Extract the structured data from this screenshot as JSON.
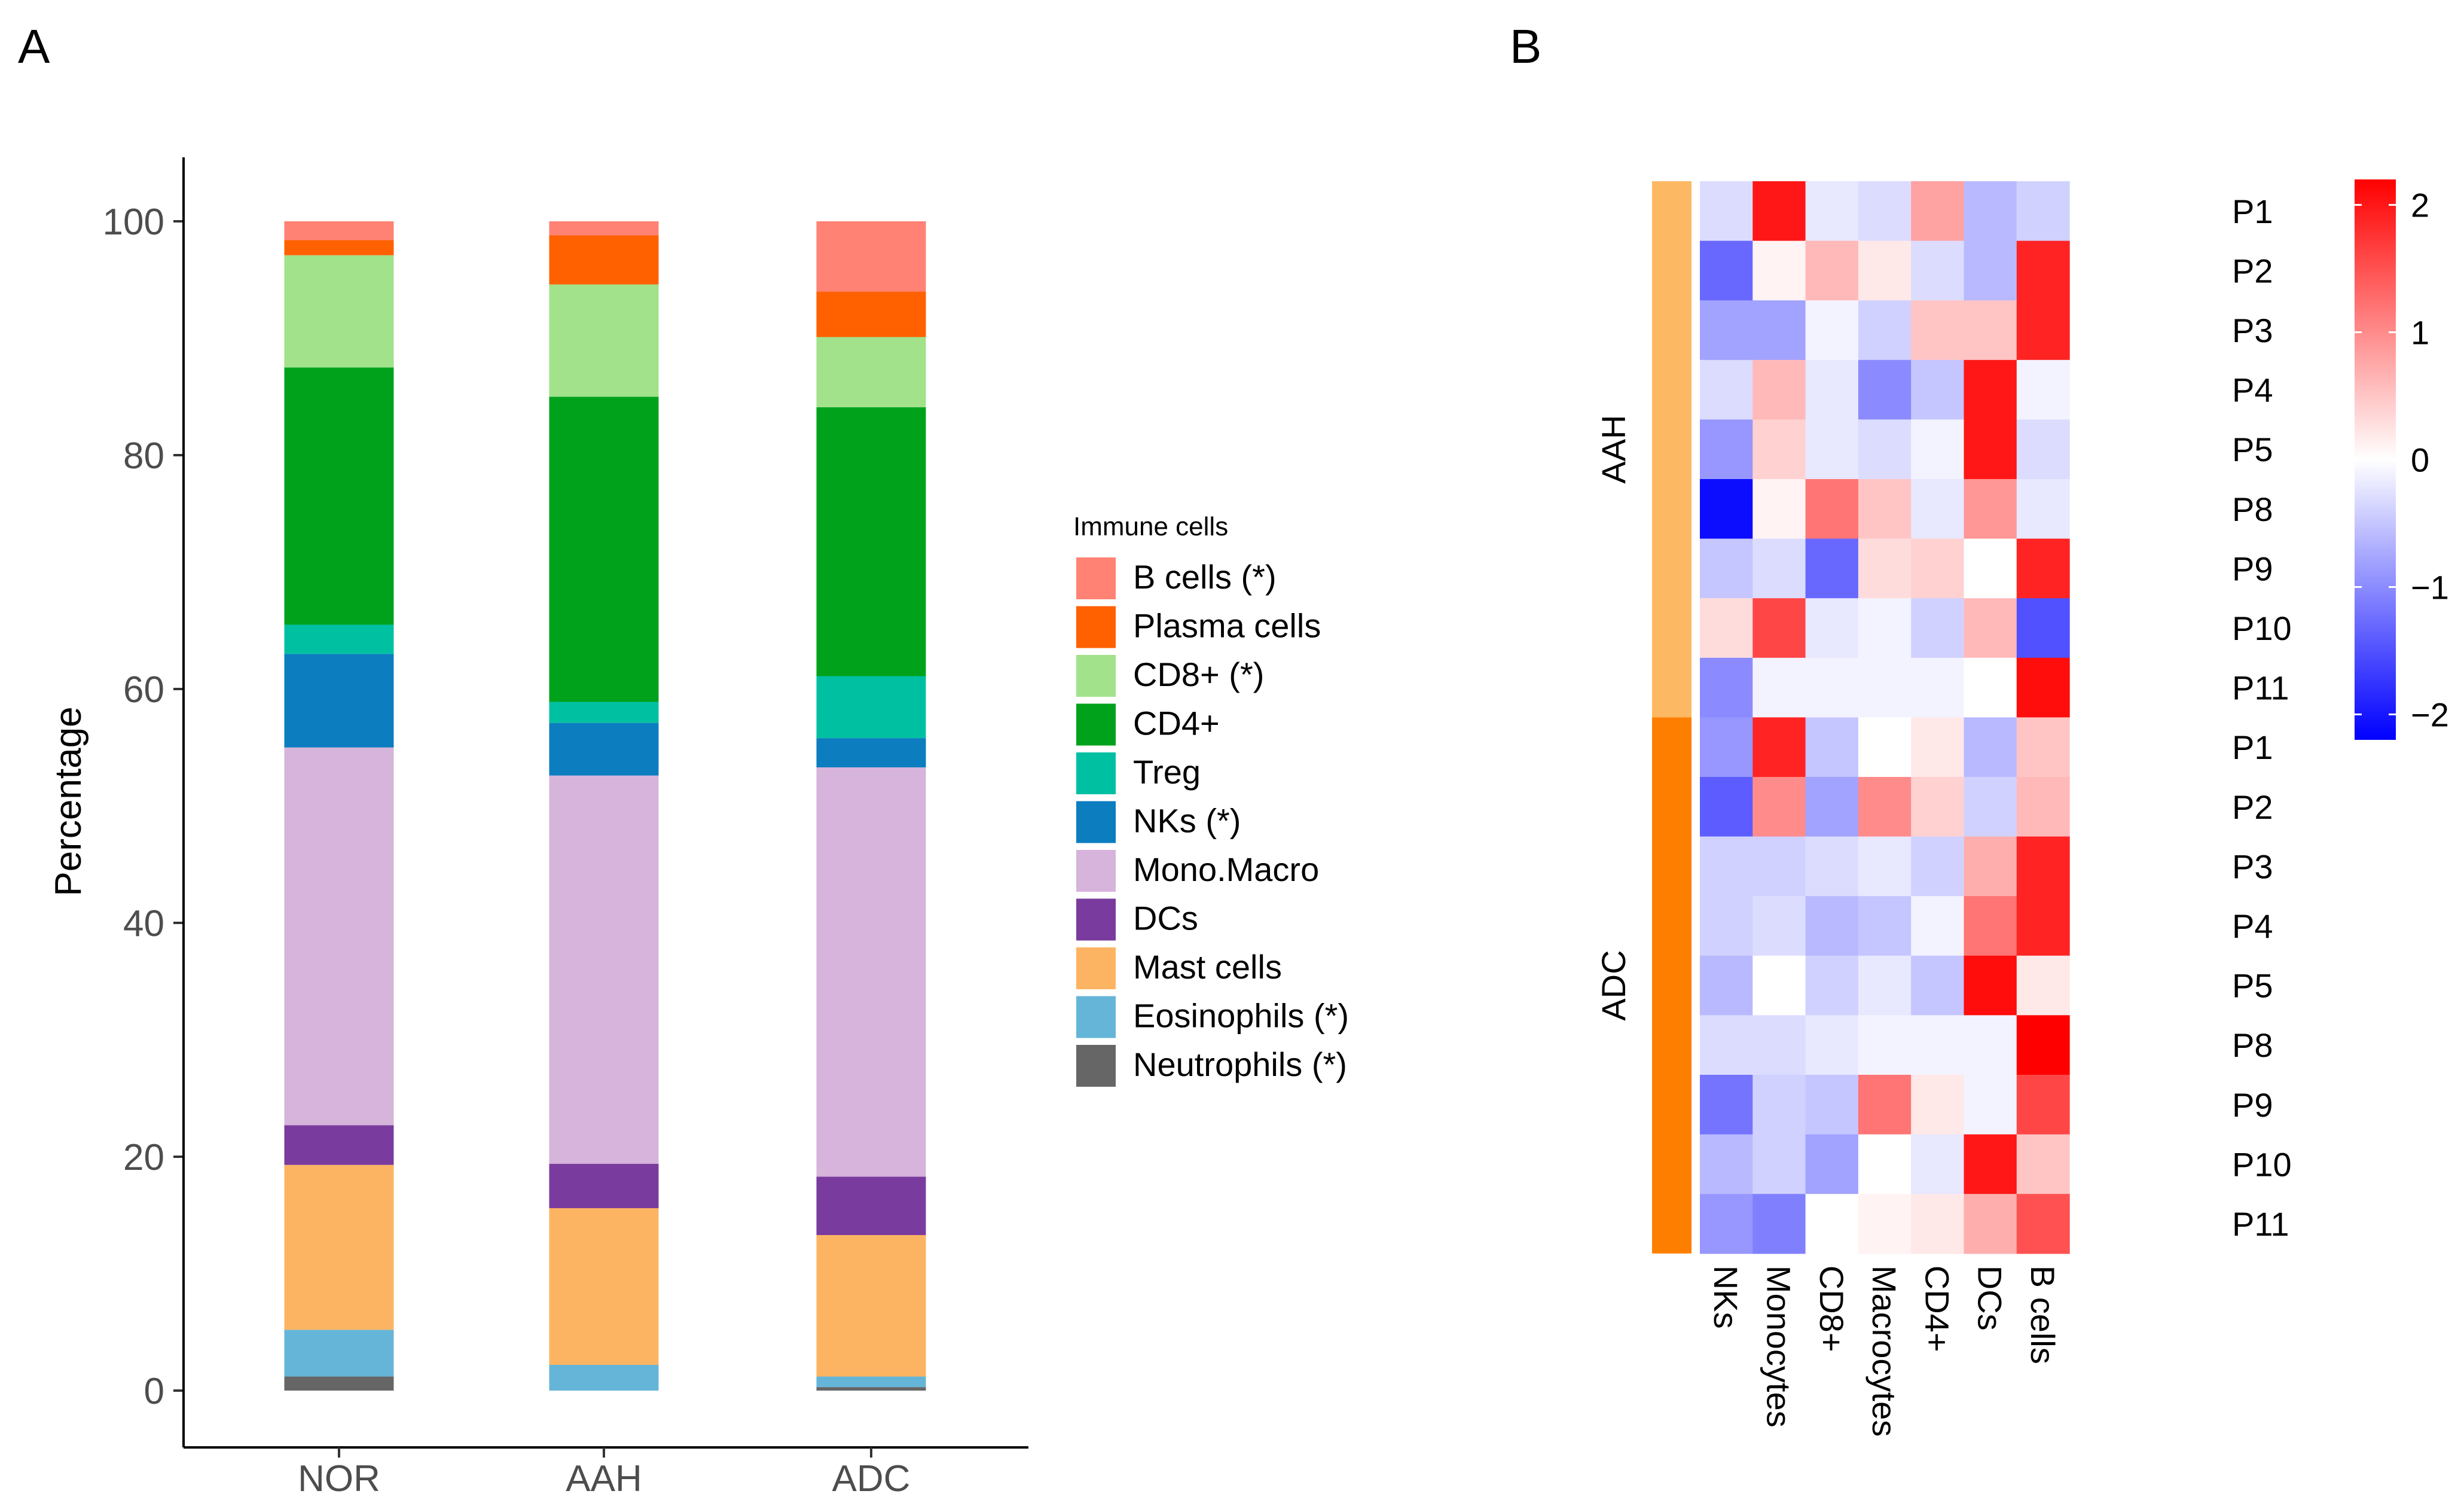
{
  "chart_data": [
    {
      "panel_label": "A",
      "type": "bar",
      "stacked": true,
      "ylabel": "Percentage",
      "ylim": [
        -4,
        105
      ],
      "yticks": [
        "0",
        "20",
        "40",
        "60",
        "80",
        "100"
      ],
      "categories": [
        "NOR",
        "AAH",
        "ADC"
      ],
      "legend_title": "Immune cells",
      "series": [
        {
          "name": "Neutrophils (*)",
          "color": "#666666",
          "values": [
            1.2,
            0.0,
            0.3
          ]
        },
        {
          "name": "Eosinophils (*)",
          "color": "#65b5d8",
          "values": [
            4.0,
            2.2,
            0.9
          ]
        },
        {
          "name": "Mast cells",
          "color": "#fdb462",
          "values": [
            14.1,
            13.4,
            12.1
          ]
        },
        {
          "name": "DCs",
          "color": "#7a3b9e",
          "values": [
            3.4,
            3.8,
            5.0
          ]
        },
        {
          "name": "Mono.Macro",
          "color": "#d6b4db",
          "values": [
            32.3,
            33.2,
            35.0
          ]
        },
        {
          "name": "NKs (*)",
          "color": "#0c7dbf",
          "values": [
            8.0,
            4.5,
            2.5
          ]
        },
        {
          "name": "Treg",
          "color": "#00c0a2",
          "values": [
            2.5,
            1.8,
            5.3
          ]
        },
        {
          "name": "CD4+",
          "color": "#00a21c",
          "values": [
            22.0,
            26.1,
            23.0
          ]
        },
        {
          "name": "CD8+ (*)",
          "color": "#a1e28a",
          "values": [
            9.6,
            9.6,
            6.0
          ]
        },
        {
          "name": "Plasma cells",
          "color": "#ff6000",
          "values": [
            1.3,
            4.2,
            3.9
          ]
        },
        {
          "name": "B cells (*)",
          "color": "#ff8275",
          "values": [
            1.6,
            1.2,
            6.0
          ]
        }
      ]
    },
    {
      "panel_label": "B",
      "type": "heatmap",
      "columns": [
        "NKs",
        "Monocytes",
        "CD8+",
        "Macrocytes",
        "CD4+",
        "DCs",
        "B cells"
      ],
      "groups": [
        {
          "name": "AAH",
          "color": "#fdb863",
          "rows": [
            "P1",
            "P2",
            "P3",
            "P4",
            "P5",
            "P8",
            "P9",
            "P10",
            "P11"
          ]
        },
        {
          "name": "ADC",
          "color": "#fe7f00",
          "rows": [
            "P1",
            "P2",
            "P3",
            "P4",
            "P5",
            "P8",
            "P9",
            "P10",
            "P11"
          ]
        }
      ],
      "values": [
        [
          -0.3,
          2.0,
          -0.2,
          -0.3,
          0.8,
          -0.6,
          -0.4
        ],
        [
          -1.3,
          0.1,
          0.6,
          0.2,
          -0.3,
          -0.6,
          1.9
        ],
        [
          -0.8,
          -0.8,
          -0.1,
          -0.4,
          0.5,
          0.5,
          1.9
        ],
        [
          -0.3,
          0.6,
          -0.2,
          -1.0,
          -0.5,
          2.0,
          -0.1
        ],
        [
          -0.9,
          0.4,
          -0.2,
          -0.3,
          -0.1,
          2.0,
          -0.3
        ],
        [
          -2.1,
          0.1,
          1.2,
          0.5,
          -0.2,
          0.9,
          -0.2
        ],
        [
          -0.5,
          -0.3,
          -1.3,
          0.3,
          0.4,
          0.0,
          1.9
        ],
        [
          0.3,
          1.6,
          -0.2,
          -0.1,
          -0.4,
          0.6,
          -1.5
        ],
        [
          -1.0,
          -0.1,
          -0.1,
          -0.1,
          -0.1,
          0.0,
          2.1
        ],
        [
          -0.9,
          1.9,
          -0.5,
          0.0,
          0.2,
          -0.6,
          0.5
        ],
        [
          -1.4,
          1.0,
          -0.8,
          1.0,
          0.4,
          -0.4,
          0.6
        ],
        [
          -0.4,
          -0.4,
          -0.3,
          -0.2,
          -0.4,
          0.7,
          1.9
        ],
        [
          -0.4,
          -0.3,
          -0.6,
          -0.5,
          -0.1,
          1.2,
          1.9
        ],
        [
          -0.6,
          0.0,
          -0.4,
          -0.2,
          -0.5,
          2.1,
          0.2
        ],
        [
          -0.3,
          -0.3,
          -0.2,
          -0.1,
          -0.1,
          -0.1,
          2.2
        ],
        [
          -1.2,
          -0.4,
          -0.5,
          1.2,
          0.2,
          -0.1,
          1.6
        ],
        [
          -0.6,
          -0.4,
          -0.8,
          0.0,
          -0.2,
          2.0,
          0.5
        ],
        [
          -0.9,
          -1.1,
          0.0,
          0.1,
          0.2,
          0.7,
          1.5
        ]
      ],
      "color_scale": {
        "min": -2.2,
        "max": 2.2,
        "low": "#0000ff",
        "mid": "#ffffff",
        "high": "#ff0000"
      },
      "colorbar_ticks": [
        "2",
        "1",
        "0",
        "−1",
        "−2"
      ]
    }
  ]
}
